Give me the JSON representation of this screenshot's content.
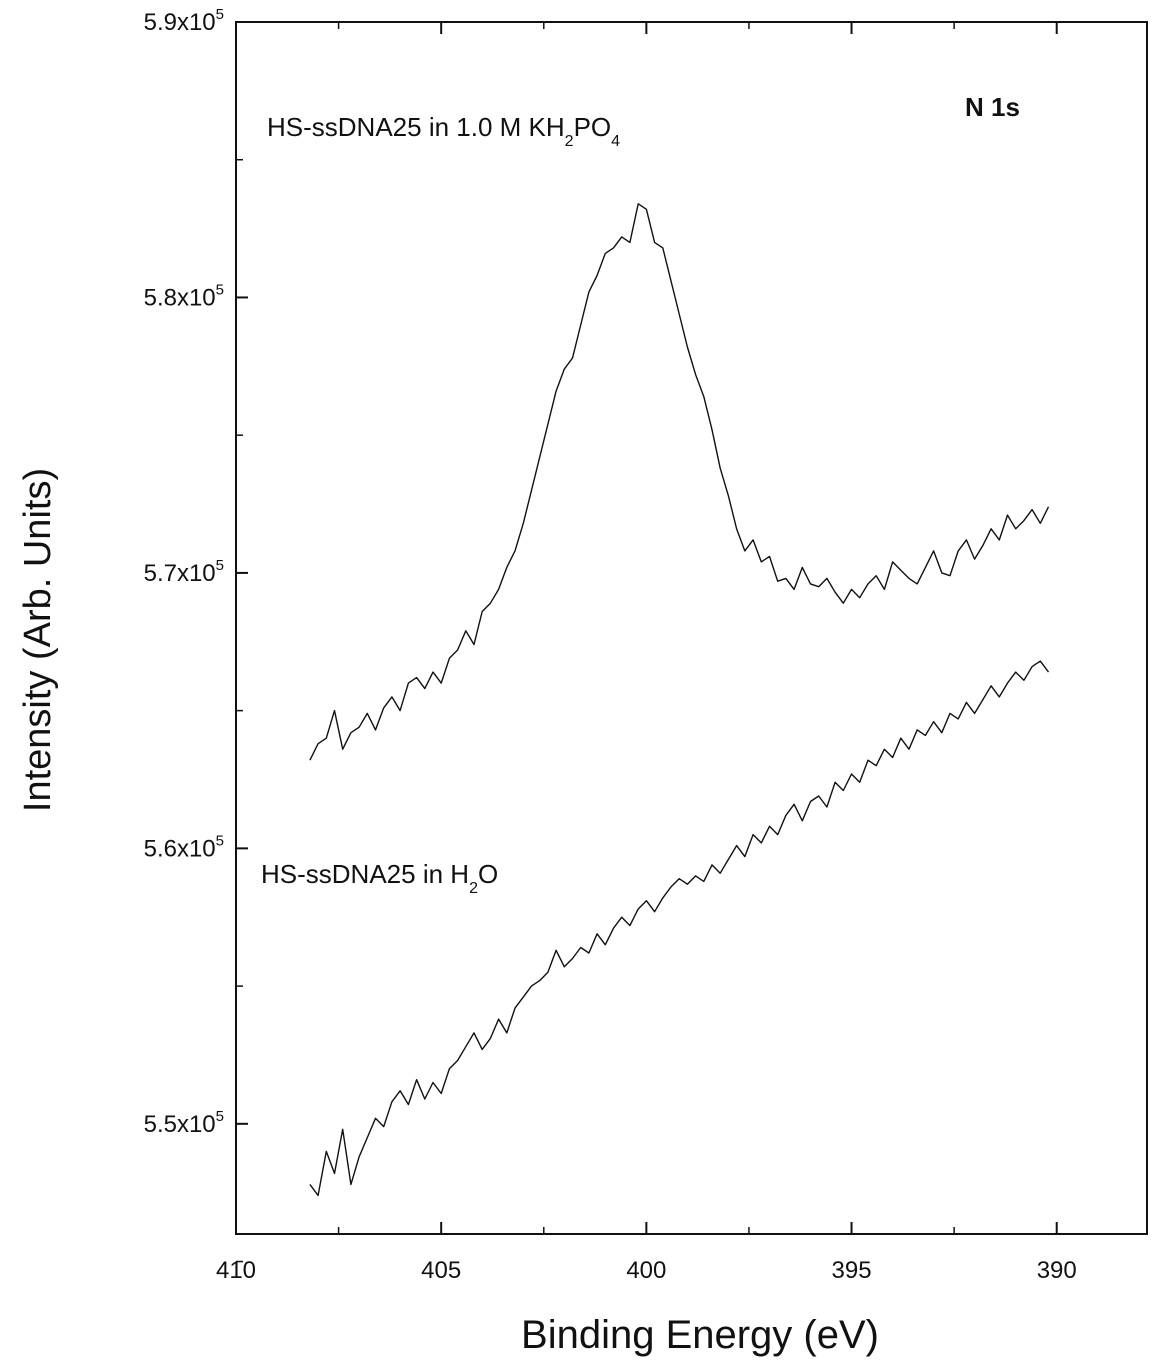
{
  "chart_data": {
    "type": "line",
    "title": "N 1s",
    "xlabel": "Binding Energy (eV)",
    "ylabel": "Intensity (Arb. Units)",
    "x_reversed": true,
    "xlim": [
      410,
      387.8
    ],
    "ylim": [
      546000,
      590000
    ],
    "x_ticks": [
      410,
      405,
      400,
      395,
      390
    ],
    "x_tick_labels": [
      "410",
      "405",
      "400",
      "395",
      "390"
    ],
    "y_ticks": [
      550000,
      560000,
      570000,
      580000,
      590000
    ],
    "y_tick_labels": [
      {
        "mantissa": "5.5x10",
        "exp": "5"
      },
      {
        "mantissa": "5.6x10",
        "exp": "5"
      },
      {
        "mantissa": "5.7x10",
        "exp": "5"
      },
      {
        "mantissa": "5.8x10",
        "exp": "5"
      },
      {
        "mantissa": "5.9x10",
        "exp": "5"
      }
    ],
    "annotations": {
      "kh2po4": {
        "pre": "HS-ssDNA25 in 1.0 M KH",
        "s1": "2",
        "mid": "PO",
        "s2": "4"
      },
      "h2o": {
        "pre": "HS-ssDNA25 in H",
        "s1": "2",
        "post": "O"
      }
    },
    "series": [
      {
        "x": [
          408.2,
          408.0,
          407.8,
          407.6,
          407.4,
          407.2,
          407.0,
          406.8,
          406.6,
          406.4,
          406.2,
          406.0,
          405.8,
          405.6,
          405.4,
          405.2,
          405.0,
          404.8,
          404.6,
          404.4,
          404.2,
          404.0,
          403.8,
          403.6,
          403.4,
          403.2,
          403.0,
          402.8,
          402.6,
          402.4,
          402.2,
          402.0,
          401.8,
          401.6,
          401.4,
          401.2,
          401.0,
          400.8,
          400.6,
          400.4,
          400.2,
          400.0,
          399.8,
          399.6,
          399.4,
          399.2,
          399.0,
          398.8,
          398.6,
          398.4,
          398.2,
          398.0,
          397.8,
          397.6,
          397.4,
          397.2,
          397.0,
          396.8,
          396.6,
          396.4,
          396.2,
          396.0,
          395.8,
          395.6,
          395.4,
          395.2,
          395.0,
          394.8,
          394.6,
          394.4,
          394.2,
          394.0,
          393.8,
          393.6,
          393.4,
          393.2,
          393.0,
          392.8,
          392.6,
          392.4,
          392.2,
          392.0,
          391.8,
          391.6,
          391.4,
          391.2,
          391.0,
          390.8,
          390.6,
          390.4,
          390.2
        ],
        "y": [
          563200,
          563800,
          564000,
          565000,
          563600,
          564200,
          564400,
          564900,
          564300,
          565100,
          565500,
          565000,
          566000,
          566200,
          565800,
          566400,
          566000,
          566900,
          567200,
          567900,
          567400,
          568600,
          568900,
          569400,
          570200,
          570800,
          571800,
          573000,
          574200,
          575400,
          576600,
          577400,
          577800,
          579000,
          580200,
          580800,
          581600,
          581800,
          582200,
          582000,
          583400,
          583200,
          582000,
          581800,
          580600,
          579400,
          578200,
          577200,
          576400,
          575200,
          573800,
          572800,
          571600,
          570800,
          571200,
          570400,
          570600,
          569700,
          569800,
          569400,
          570200,
          569600,
          569500,
          569800,
          569300,
          568900,
          569400,
          569100,
          569600,
          569900,
          569400,
          570400,
          570100,
          569800,
          569600,
          570200,
          570800,
          570000,
          569900,
          570800,
          571200,
          570500,
          571000,
          571600,
          571200,
          572100,
          571600,
          571900,
          572300,
          571800,
          572400
        ]
      },
      {
        "x": [
          408.2,
          408.0,
          407.8,
          407.6,
          407.4,
          407.2,
          407.0,
          406.8,
          406.6,
          406.4,
          406.2,
          406.0,
          405.8,
          405.6,
          405.4,
          405.2,
          405.0,
          404.8,
          404.6,
          404.4,
          404.2,
          404.0,
          403.8,
          403.6,
          403.4,
          403.2,
          403.0,
          402.8,
          402.6,
          402.4,
          402.2,
          402.0,
          401.8,
          401.6,
          401.4,
          401.2,
          401.0,
          400.8,
          400.6,
          400.4,
          400.2,
          400.0,
          399.8,
          399.6,
          399.4,
          399.2,
          399.0,
          398.8,
          398.6,
          398.4,
          398.2,
          398.0,
          397.8,
          397.6,
          397.4,
          397.2,
          397.0,
          396.8,
          396.6,
          396.4,
          396.2,
          396.0,
          395.8,
          395.6,
          395.4,
          395.2,
          395.0,
          394.8,
          394.6,
          394.4,
          394.2,
          394.0,
          393.8,
          393.6,
          393.4,
          393.2,
          393.0,
          392.8,
          392.6,
          392.4,
          392.2,
          392.0,
          391.8,
          391.6,
          391.4,
          391.2,
          391.0,
          390.8,
          390.6,
          390.4,
          390.2
        ],
        "y": [
          547800,
          547400,
          549000,
          548200,
          549800,
          547800,
          548800,
          549500,
          550200,
          549900,
          550800,
          551200,
          550700,
          551600,
          550900,
          551500,
          551100,
          552000,
          552300,
          552800,
          553300,
          552700,
          553100,
          553800,
          553300,
          554200,
          554600,
          555000,
          555200,
          555500,
          556300,
          555700,
          556000,
          556400,
          556200,
          556900,
          556500,
          557100,
          557500,
          557200,
          557800,
          558100,
          557700,
          558200,
          558600,
          558900,
          558700,
          559000,
          558800,
          559400,
          559100,
          559600,
          560100,
          559700,
          560500,
          560200,
          560800,
          560500,
          561200,
          561600,
          561000,
          561700,
          561900,
          561500,
          562400,
          562100,
          562700,
          562400,
          563200,
          563000,
          563600,
          563300,
          564000,
          563600,
          564300,
          564100,
          564600,
          564200,
          564900,
          564700,
          565300,
          564900,
          565400,
          565900,
          565500,
          566000,
          566400,
          566100,
          566600,
          566800,
          566400
        ]
      }
    ]
  }
}
